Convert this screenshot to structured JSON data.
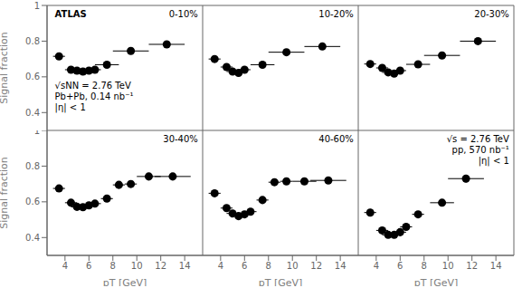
{
  "chart_data": [
    {
      "type": "scatter",
      "annotations": [
        "0-10%",
        "ATLAS",
        "√sNN = 2.76 TeV",
        "Pb+Pb, 0.14 nb⁻¹",
        "|η| < 1"
      ],
      "x": [
        3.5,
        4.5,
        5.0,
        5.5,
        6.0,
        6.5,
        7.5,
        9.5,
        12.5
      ],
      "values": [
        0.715,
        0.64,
        0.635,
        0.63,
        0.635,
        0.64,
        0.668,
        0.745,
        0.782
      ],
      "xerr": [
        0.5,
        0.5,
        0.5,
        0.5,
        0.5,
        0.5,
        1.0,
        1.5,
        1.5
      ],
      "yerr": [
        0.018,
        0.008,
        0.007,
        0.007,
        0.007,
        0.008,
        0.01,
        0.013,
        0.013
      ],
      "xlim": [
        2.5,
        15.5
      ],
      "ylim": [
        0.3,
        1
      ],
      "xticks": [
        4,
        6,
        8,
        10,
        12,
        14
      ],
      "yticks": [
        0.4,
        0.6,
        0.8,
        1
      ],
      "ylabel": "Signal fraction",
      "tick_labels": "y",
      "color": "black",
      "marker": "circle",
      "grid": false
    },
    {
      "type": "scatter",
      "annotations": [
        "10-20%"
      ],
      "x": [
        3.5,
        4.5,
        5.0,
        5.5,
        6.0,
        7.5,
        9.5,
        12.5
      ],
      "values": [
        0.7,
        0.655,
        0.63,
        0.622,
        0.64,
        0.668,
        0.738,
        0.77
      ],
      "xerr": [
        0.5,
        0.5,
        0.5,
        0.5,
        0.5,
        1.0,
        1.5,
        1.5
      ],
      "yerr": [
        0.016,
        0.01,
        0.008,
        0.008,
        0.009,
        0.011,
        0.014,
        0.014
      ],
      "xlim": [
        2.5,
        15.5
      ],
      "ylim": [
        0.3,
        1
      ],
      "xticks": [
        4,
        6,
        8,
        10,
        12,
        14
      ],
      "yticks": [
        0.4,
        0.6,
        0.8,
        1
      ],
      "tick_labels": false,
      "color": "black",
      "marker": "circle",
      "grid": false
    },
    {
      "type": "scatter",
      "annotations": [
        "20-30%"
      ],
      "x": [
        3.5,
        4.5,
        5.0,
        5.5,
        6.0,
        7.5,
        9.5,
        12.5
      ],
      "values": [
        0.672,
        0.65,
        0.625,
        0.618,
        0.635,
        0.67,
        0.72,
        0.8
      ],
      "xerr": [
        0.5,
        0.5,
        0.5,
        0.5,
        0.5,
        1.0,
        1.5,
        1.5
      ],
      "yerr": [
        0.016,
        0.01,
        0.008,
        0.008,
        0.009,
        0.011,
        0.014,
        0.014
      ],
      "xlim": [
        2.5,
        15.5
      ],
      "ylim": [
        0.3,
        1
      ],
      "xticks": [
        4,
        6,
        8,
        10,
        12,
        14
      ],
      "yticks": [
        0.4,
        0.6,
        0.8,
        1
      ],
      "tick_labels": false,
      "color": "black",
      "marker": "circle",
      "grid": false
    },
    {
      "type": "scatter",
      "annotations": [
        "30-40%"
      ],
      "x": [
        3.5,
        4.5,
        5.0,
        5.5,
        6.0,
        6.5,
        7.5,
        8.5,
        9.5,
        11.0,
        13.0
      ],
      "values": [
        0.675,
        0.595,
        0.572,
        0.57,
        0.58,
        0.59,
        0.618,
        0.695,
        0.7,
        0.742,
        0.742
      ],
      "xerr": [
        0.5,
        0.5,
        0.5,
        0.5,
        0.5,
        0.5,
        0.5,
        0.5,
        0.5,
        1.0,
        1.5
      ],
      "yerr": [
        0.018,
        0.01,
        0.009,
        0.009,
        0.009,
        0.01,
        0.011,
        0.013,
        0.015,
        0.016,
        0.016
      ],
      "xlim": [
        2.5,
        15.5
      ],
      "ylim": [
        0.3,
        1
      ],
      "xticks": [
        4,
        6,
        8,
        10,
        12,
        14
      ],
      "yticks": [
        0.4,
        0.6,
        0.8,
        1
      ],
      "xlabel": "pT [GeV]",
      "ylabel": "Signal fraction",
      "color": "black",
      "marker": "circle",
      "grid": false
    },
    {
      "type": "scatter",
      "annotations": [
        "40-60%"
      ],
      "x": [
        3.5,
        4.5,
        5.0,
        5.5,
        6.0,
        6.5,
        7.5,
        8.5,
        9.5,
        11.0,
        13.0
      ],
      "values": [
        0.648,
        0.565,
        0.535,
        0.52,
        0.53,
        0.545,
        0.61,
        0.71,
        0.715,
        0.715,
        0.72
      ],
      "xerr": [
        0.5,
        0.5,
        0.5,
        0.5,
        0.5,
        0.5,
        0.5,
        0.5,
        0.5,
        1.0,
        1.5
      ],
      "yerr": [
        0.02,
        0.012,
        0.01,
        0.01,
        0.01,
        0.011,
        0.013,
        0.015,
        0.016,
        0.018,
        0.018
      ],
      "xlim": [
        2.5,
        15.5
      ],
      "ylim": [
        0.3,
        1
      ],
      "xticks": [
        4,
        6,
        8,
        10,
        12,
        14
      ],
      "yticks": [
        0.4,
        0.6,
        0.8,
        1
      ],
      "xlabel": "pT [GeV]",
      "tick_labels": "x",
      "color": "black",
      "marker": "circle",
      "grid": false
    },
    {
      "type": "scatter",
      "annotations": [
        "√s = 2.76 TeV",
        "pp, 570 nb⁻¹",
        "|η| < 1"
      ],
      "x": [
        3.5,
        4.5,
        5.0,
        5.5,
        6.0,
        6.5,
        7.5,
        9.5,
        11.5
      ],
      "values": [
        0.54,
        0.44,
        0.415,
        0.415,
        0.43,
        0.46,
        0.53,
        0.595,
        0.73
      ],
      "xerr": [
        0.5,
        0.5,
        0.5,
        0.5,
        0.5,
        0.5,
        0.5,
        1.0,
        1.5
      ],
      "yerr": [
        0.02,
        0.014,
        0.01,
        0.01,
        0.01,
        0.011,
        0.014,
        0.018,
        0.022
      ],
      "xlim": [
        2.5,
        15.5
      ],
      "ylim": [
        0.3,
        1
      ],
      "xticks": [
        4,
        6,
        8,
        10,
        12,
        14
      ],
      "yticks": [
        0.4,
        0.6,
        0.8,
        1
      ],
      "xlabel": "pT [GeV]",
      "tick_labels": "x",
      "color": "black",
      "marker": "circle",
      "grid": false
    }
  ]
}
